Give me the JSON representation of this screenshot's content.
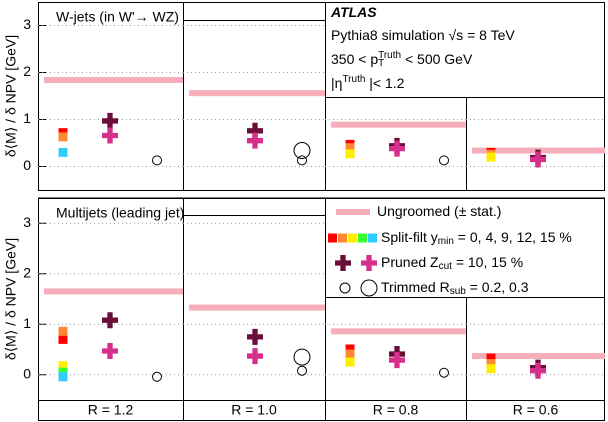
{
  "chart_data": {
    "type": "dot",
    "ylabel": "δ⟨M⟩ / δ NPV  [GeV]",
    "categories": [
      "R = 1.2",
      "R = 1.0",
      "R = 0.8",
      "R = 0.6"
    ],
    "ylim": [
      -0.5,
      3.5
    ],
    "yticks": [
      0,
      1,
      2,
      3
    ],
    "grid": true,
    "annotations": [
      [
        {
          "text": "ATLAS"
        }
      ],
      [
        {
          "text": "Pythia8 simulation √s = 8 TeV"
        }
      ],
      [
        {
          "text": "350 < p"
        },
        {
          "sub": "T"
        },
        {
          "sup": "Truth"
        },
        {
          "text": " < 500 GeV"
        }
      ],
      [
        {
          "text": "|η"
        },
        {
          "sup": "Truth"
        },
        {
          "text": " |< 1.2"
        }
      ]
    ],
    "legend": [
      {
        "name": [
          {
            "text": "Ungroomed (± stat.)"
          }
        ],
        "marker": "band",
        "colors": [
          "#f7aebb"
        ]
      },
      {
        "name": [
          {
            "text": "Split-filt y"
          },
          {
            "sub": "min"
          },
          {
            "text": " = 0, 4, 9, 12, 15 %"
          }
        ],
        "marker": "square",
        "colors": [
          "#ff0000",
          "#ff8833",
          "#ffee00",
          "#33ff33",
          "#33ccff"
        ]
      },
      {
        "name": [
          {
            "text": "Pruned Z"
          },
          {
            "sub": "cut"
          },
          {
            "text": " = 10, 15 %"
          }
        ],
        "marker": "cross",
        "colors": [
          "#6b0f3a",
          "#d6308c"
        ]
      },
      {
        "name": [
          {
            "text": "Trimmed R"
          },
          {
            "sub": "sub"
          },
          {
            "text": " = 0.2, 0.3"
          }
        ],
        "marker": "circle",
        "colors": [
          "#000000",
          "#000000"
        ]
      }
    ],
    "panels": [
      {
        "title": "W-jets (in W'→ WZ)",
        "groups": [
          [
            [
              1.84,
              1.56,
              0.89,
              0.34
            ]
          ],
          [
            [
              0.72,
              null,
              0.47,
              0.3
            ],
            [
              0.63,
              null,
              0.4,
              0.26
            ],
            [
              null,
              null,
              0.27,
              0.2
            ],
            [
              null,
              null,
              null,
              null
            ],
            [
              0.3,
              null,
              null,
              null
            ]
          ],
          [
            [
              0.97,
              0.76,
              0.44,
              0.19
            ],
            [
              0.66,
              0.55,
              0.38,
              0.15
            ]
          ],
          [
            [
              0.13,
              0.13,
              0.13,
              null
            ],
            [
              null,
              0.34,
              null,
              null
            ]
          ]
        ]
      },
      {
        "title": "Multijets (leading jet)",
        "groups": [
          [
            [
              1.65,
              1.33,
              0.86,
              0.37
            ]
          ],
          [
            [
              0.7,
              null,
              0.51,
              0.33
            ],
            [
              0.86,
              null,
              0.41,
              0.22
            ],
            [
              0.18,
              null,
              0.25,
              0.12
            ],
            [
              0.05,
              null,
              null,
              null
            ],
            [
              -0.04,
              null,
              null,
              null
            ]
          ],
          [
            [
              1.08,
              0.75,
              0.41,
              0.14
            ],
            [
              0.47,
              0.37,
              0.29,
              0.08
            ]
          ],
          [
            [
              -0.04,
              0.08,
              0.04,
              null
            ],
            [
              null,
              0.35,
              null,
              null
            ]
          ]
        ]
      }
    ]
  }
}
